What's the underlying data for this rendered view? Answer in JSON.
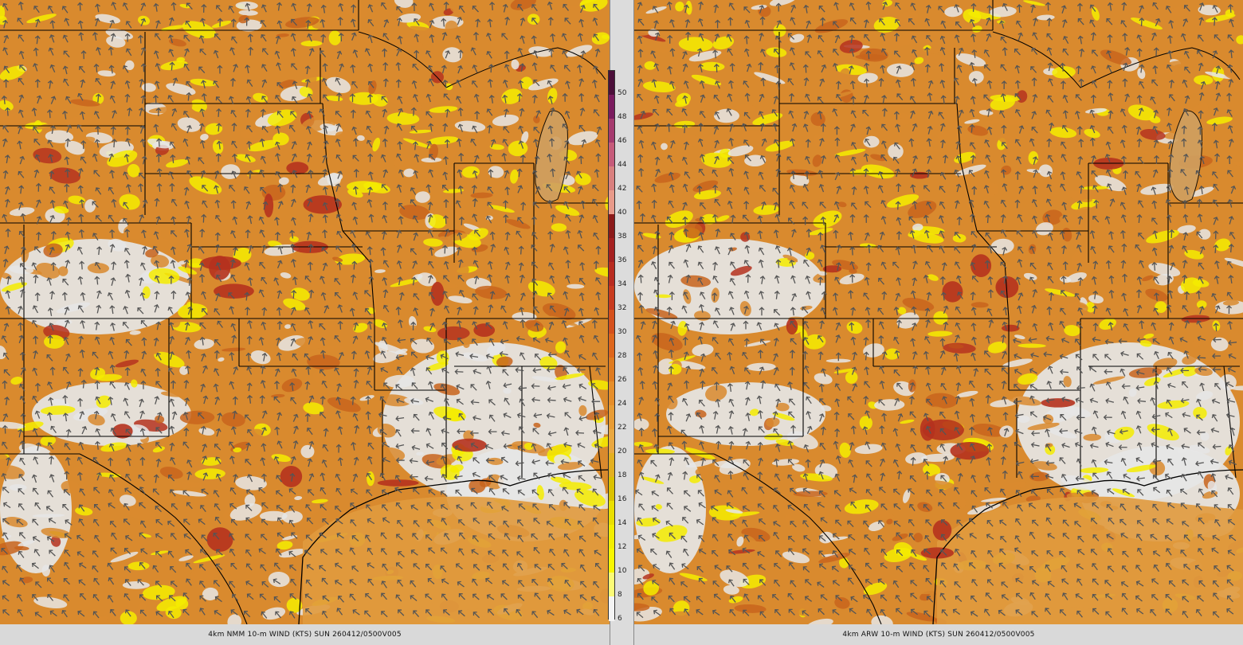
{
  "panels": [
    {
      "id": "left",
      "caption": "4km NMM 10-m WIND (KTS) SUN 260412/0500V005",
      "seed": 7
    },
    {
      "id": "right",
      "caption": "4km ARW 10-m WIND (KTS) SUN 260412/0500V005",
      "seed": 23
    }
  ],
  "colorbar": {
    "labels": [
      "50",
      "48",
      "46",
      "44",
      "42",
      "40",
      "38",
      "36",
      "34",
      "32",
      "30",
      "28",
      "26",
      "24",
      "22",
      "20",
      "18",
      "16",
      "14",
      "12",
      "10",
      "8",
      "6"
    ],
    "colors": [
      "#4b0f3a",
      "#7a1b5e",
      "#a53a6e",
      "#c65b7a",
      "#d9807f",
      "#e89a8a",
      "#8b1a1a",
      "#a52020",
      "#b82b20",
      "#c83b1f",
      "#d5501c",
      "#de661c",
      "#e07b1f",
      "#e68e2a",
      "#e89c35",
      "#eaa840",
      "#e4b020",
      "#dbc100",
      "#eadf00",
      "#f3ee00",
      "#f9f700",
      "#fbfb77",
      "#f4f4f4"
    ]
  },
  "legend_colors": {
    "calm": "#e6e6e6",
    "light": "#f4ec00",
    "moderate": "#d98a2e",
    "strong": "#c8641c",
    "gale": "#b5321e",
    "border": "#000000",
    "arrow": "#555555"
  }
}
